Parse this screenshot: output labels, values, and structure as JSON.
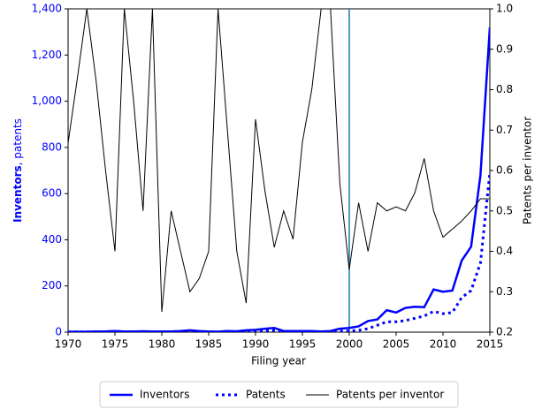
{
  "chart_data": {
    "type": "line",
    "xlabel": "Filing year",
    "ylabel_parts": [
      "Inventors",
      ", patents"
    ],
    "y2label": "Patents per inventor",
    "x": [
      1970,
      1971,
      1972,
      1973,
      1974,
      1975,
      1976,
      1977,
      1978,
      1979,
      1980,
      1981,
      1982,
      1983,
      1984,
      1985,
      1986,
      1987,
      1988,
      1989,
      1990,
      1991,
      1992,
      1993,
      1994,
      1995,
      1996,
      1997,
      1998,
      1999,
      2000,
      2001,
      2002,
      2003,
      2004,
      2005,
      2006,
      2007,
      2008,
      2009,
      2010,
      2011,
      2012,
      2013,
      2014,
      2015
    ],
    "series": [
      {
        "name": "Inventors",
        "color": "#0000ff",
        "style": "solid",
        "width": 2.5,
        "values": [
          2,
          2,
          2,
          3,
          3,
          5,
          3,
          3,
          4,
          3,
          3,
          3,
          5,
          8,
          5,
          3,
          2,
          5,
          4,
          8,
          10,
          15,
          18,
          5,
          5,
          5,
          5,
          3,
          5,
          15,
          18,
          25,
          48,
          55,
          95,
          85,
          105,
          110,
          108,
          185,
          175,
          180,
          310,
          370,
          680,
          1320
        ]
      },
      {
        "name": "Patents",
        "color": "#0000ff",
        "style": "dotted",
        "width": 3,
        "values": [
          1,
          1,
          1,
          2,
          2,
          3,
          2,
          2,
          2,
          2,
          1,
          2,
          3,
          4,
          2,
          2,
          1,
          3,
          2,
          3,
          4,
          6,
          8,
          2,
          2,
          2,
          2,
          1,
          2,
          4,
          5,
          8,
          15,
          30,
          45,
          45,
          50,
          60,
          70,
          90,
          80,
          85,
          150,
          180,
          300,
          690
        ]
      },
      {
        "name": "Patents per inventor",
        "color": "#000000",
        "style": "solid",
        "width": 1,
        "axis": "y2",
        "values": [
          0.668,
          0.83,
          1.0,
          0.82,
          0.6,
          0.4,
          1.0,
          0.77,
          0.5,
          1.0,
          0.25,
          0.5,
          0.4,
          0.3,
          0.333,
          0.4,
          1.0,
          0.7,
          0.4,
          0.272,
          0.727,
          0.55,
          0.41,
          0.5,
          0.43,
          0.67,
          0.8,
          1.0,
          1.0,
          0.567,
          0.355,
          0.52,
          0.4,
          0.52,
          0.5,
          0.51,
          0.5,
          0.545,
          0.63,
          0.5,
          0.435,
          0.455,
          0.475,
          0.5,
          0.53,
          0.53
        ]
      }
    ],
    "vline": {
      "x": 2000,
      "color": "#1f77b4"
    },
    "xlim": [
      1970,
      2015
    ],
    "xticks": [
      1970,
      1975,
      1980,
      1985,
      1990,
      1995,
      2000,
      2005,
      2010,
      2015
    ],
    "ylim": [
      0,
      1400
    ],
    "yticks": [
      0,
      200,
      400,
      600,
      800,
      {
        "value": 1000,
        "label": "1,000"
      },
      {
        "value": 1200,
        "label": "1,200"
      },
      {
        "value": 1400,
        "label": "1,400"
      }
    ],
    "y2lim": [
      0.2,
      1.0
    ],
    "y2ticks": [
      0.2,
      0.3,
      0.4,
      0.5,
      0.6,
      0.7,
      0.8,
      0.9,
      {
        "value": 1,
        "label": "1.0"
      }
    ],
    "legend": "bottom"
  }
}
